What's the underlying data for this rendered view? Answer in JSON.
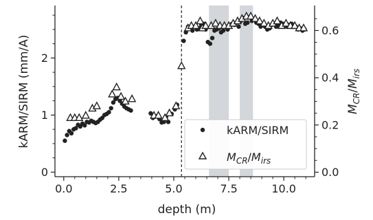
{
  "chart_data": {
    "type": "scatter",
    "xlabel": "depth (m)",
    "ylabel_left": "kARM/SIRM (mm/A)",
    "ylabel_right": "M_CR/M_irs",
    "xlim": [
      -0.4,
      11.4
    ],
    "ylim_left": [
      -0.08,
      2.92
    ],
    "ylim_right": [
      -0.019,
      0.706
    ],
    "x_ticks": [
      0.0,
      2.5,
      5.0,
      7.5,
      10.0
    ],
    "x_tick_labels": [
      "0.0",
      "2.5",
      "5.0",
      "7.5",
      "10.0"
    ],
    "y_left_ticks": [
      0,
      1,
      2
    ],
    "y_left_tick_labels": [
      "0",
      "1",
      "2"
    ],
    "y_right_ticks": [
      0.0,
      0.2,
      0.4,
      0.6
    ],
    "y_right_tick_labels": [
      "0.0",
      "0.2",
      "0.4",
      "0.6"
    ],
    "vertical_line": {
      "x": 5.35,
      "style": "dashed",
      "color": "#333333"
    },
    "shaded_regions": [
      {
        "x0": 6.6,
        "x1": 7.5
      },
      {
        "x0": 8.0,
        "x1": 8.6
      }
    ],
    "shade_color": "#d3d6da",
    "legend": {
      "location": "lower-right"
    },
    "series": [
      {
        "name": "kARM/SIRM",
        "marker": "filled-circle",
        "axis": "left",
        "color": "#222222",
        "x": [
          0.05,
          0.15,
          0.25,
          0.35,
          0.45,
          0.55,
          0.65,
          0.75,
          0.85,
          0.95,
          1.05,
          1.15,
          1.25,
          1.35,
          1.45,
          1.55,
          1.65,
          1.75,
          1.85,
          1.95,
          2.05,
          2.15,
          2.25,
          2.35,
          2.45,
          2.55,
          2.65,
          2.75,
          2.85,
          2.95,
          3.05,
          3.95,
          4.05,
          4.2,
          4.35,
          4.45,
          4.55,
          4.65,
          4.75,
          4.9,
          5.05,
          5.15,
          5.45,
          5.55,
          5.65,
          5.75,
          5.85,
          5.95,
          6.05,
          6.15,
          6.25,
          6.35,
          6.45,
          6.55,
          6.65,
          6.75,
          6.85,
          6.95,
          7.05,
          7.15,
          7.25,
          7.35,
          7.45,
          7.55,
          7.65,
          7.75,
          7.85,
          7.95,
          8.05,
          8.15,
          8.25,
          8.35,
          8.45,
          8.55,
          8.65,
          8.75,
          8.85,
          8.95,
          9.05,
          9.15,
          9.25,
          9.35,
          9.45,
          9.55,
          9.65,
          9.75,
          9.85,
          9.95,
          10.05,
          10.15,
          10.25,
          10.35,
          10.45,
          10.55,
          10.65,
          10.75,
          10.85,
          10.95
        ],
        "y": [
          0.55,
          0.65,
          0.72,
          0.68,
          0.75,
          0.77,
          0.83,
          0.8,
          0.85,
          0.82,
          0.88,
          0.87,
          0.9,
          0.88,
          0.86,
          0.88,
          0.92,
          0.95,
          1.0,
          1.02,
          1.05,
          1.12,
          1.22,
          1.28,
          1.3,
          1.25,
          1.2,
          1.15,
          1.12,
          1.1,
          1.08,
          1.03,
          0.95,
          0.98,
          0.93,
          0.87,
          0.88,
          0.97,
          0.88,
          1.02,
          1.1,
          1.18,
          2.3,
          2.45,
          2.55,
          2.52,
          2.48,
          2.55,
          2.5,
          2.52,
          2.58,
          2.6,
          2.5,
          2.28,
          2.25,
          2.35,
          2.48,
          2.5,
          2.52,
          2.45,
          2.48,
          2.55,
          2.5,
          2.55,
          2.6,
          2.58,
          2.62,
          2.55,
          2.65,
          2.7,
          2.6,
          2.62,
          2.72,
          2.65,
          2.68,
          2.62,
          2.6,
          2.55,
          2.58,
          2.55,
          2.5,
          2.52,
          2.58,
          2.6,
          2.55,
          2.58,
          2.62,
          2.6,
          2.58,
          2.55,
          2.58,
          2.6,
          2.55,
          2.55,
          2.5,
          2.52,
          2.48,
          2.5
        ]
      },
      {
        "name": "M_CR/M_irs",
        "marker": "open-triangle",
        "axis": "right",
        "color": "#222222",
        "x": [
          0.3,
          0.5,
          0.7,
          1.0,
          1.3,
          1.5,
          2.2,
          2.4,
          2.6,
          2.8,
          3.1,
          4.1,
          4.3,
          4.6,
          4.8,
          5.1,
          5.35,
          5.65,
          5.8,
          6.0,
          6.2,
          6.3,
          6.45,
          6.7,
          6.9,
          7.1,
          7.3,
          7.5,
          7.7,
          7.9,
          8.1,
          8.3,
          8.5,
          8.7,
          8.9,
          9.1,
          9.3,
          9.5,
          9.7,
          9.9,
          10.1,
          10.3,
          10.5,
          10.7,
          10.9
        ],
        "y": [
          0.23,
          0.23,
          0.23,
          0.24,
          0.27,
          0.28,
          0.33,
          0.36,
          0.32,
          0.3,
          0.31,
          0.24,
          0.24,
          0.23,
          0.25,
          0.28,
          0.45,
          0.61,
          0.62,
          0.62,
          0.64,
          0.61,
          0.62,
          0.62,
          0.63,
          0.62,
          0.62,
          0.62,
          0.63,
          0.64,
          0.65,
          0.66,
          0.66,
          0.65,
          0.64,
          0.63,
          0.62,
          0.63,
          0.64,
          0.62,
          0.63,
          0.62,
          0.62,
          0.61,
          0.61
        ]
      }
    ]
  }
}
